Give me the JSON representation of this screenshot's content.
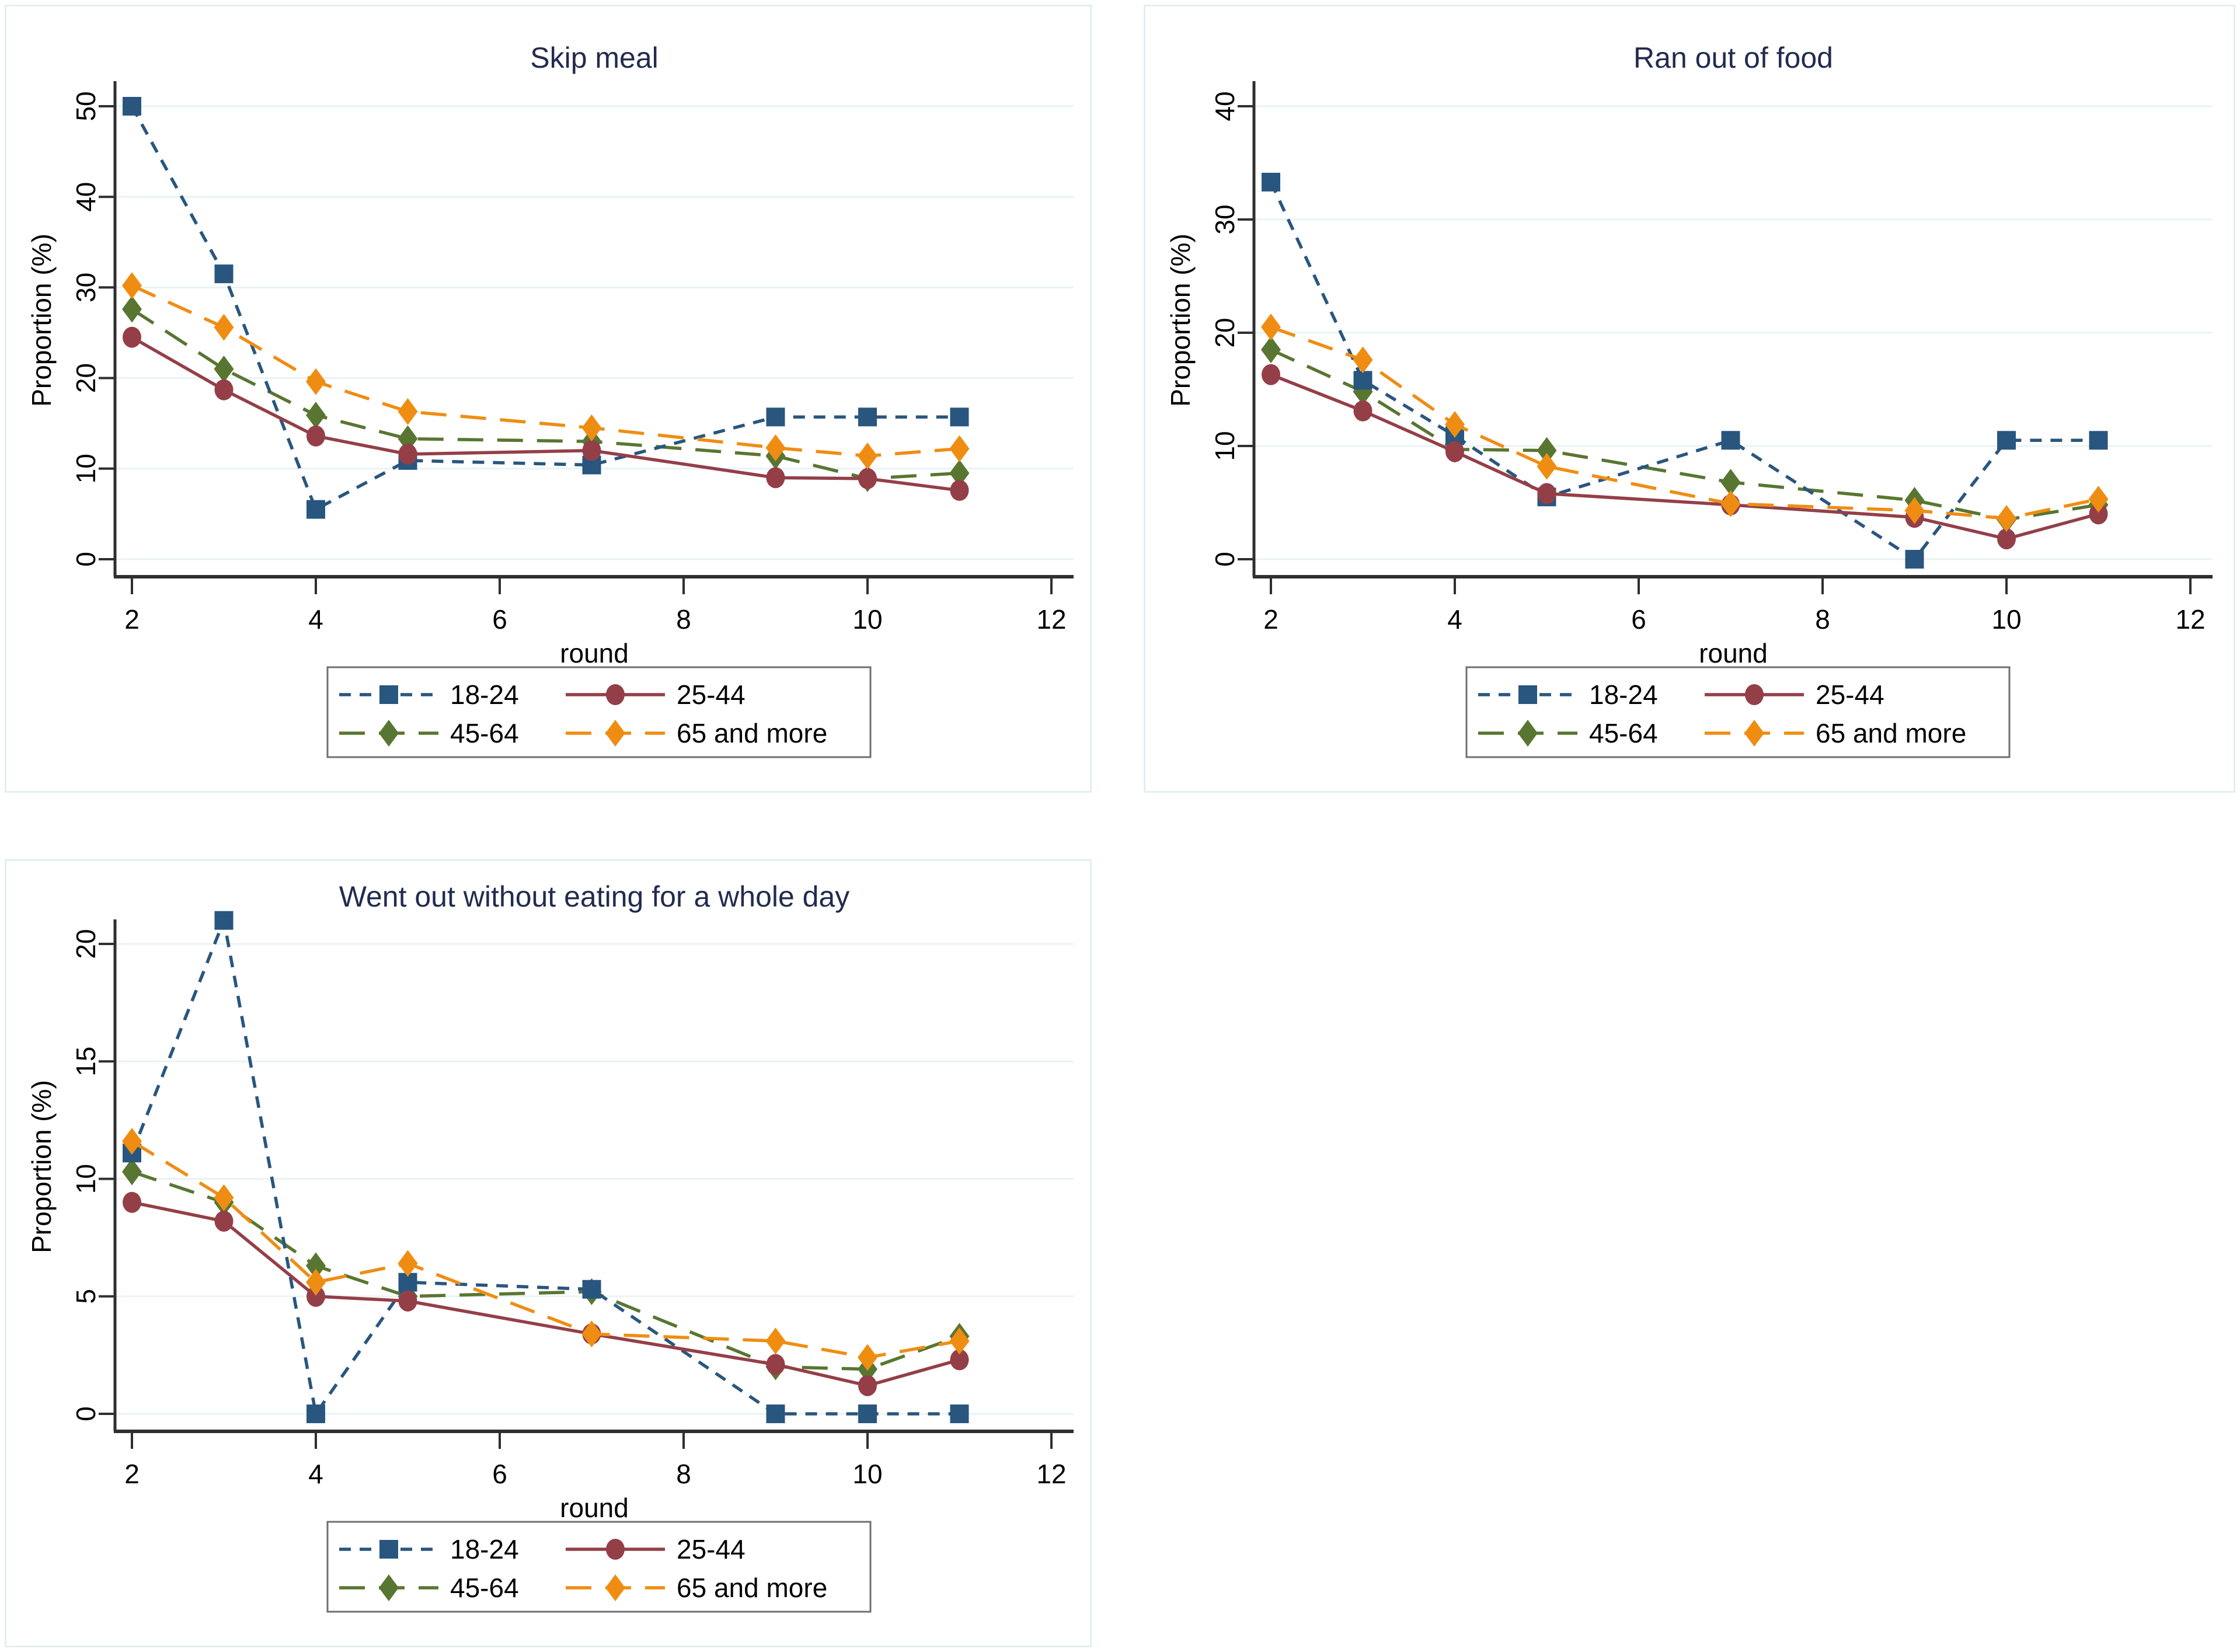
{
  "page": {
    "background": "#ffffff"
  },
  "style": {
    "title_color": "#222b4f",
    "axis_color": "#2f2f2f",
    "grid_color": "#e9f3f4",
    "tick_text_color": "#000000",
    "legend_border_color": "#6f6f6f",
    "panel_border_color": "#e3eef0",
    "series_colors": {
      "navy": "#29567e",
      "maroon": "#943f48",
      "green": "#587631",
      "orange": "#ef8d12"
    }
  },
  "chart_data": [
    {
      "id": "skip-meal",
      "type": "line",
      "title": "Skip meal",
      "xlabel": "round",
      "ylabel": "Proportion (%)",
      "x": [
        2,
        3,
        4,
        5,
        7,
        9,
        10,
        11
      ],
      "xticks": [
        2,
        4,
        6,
        8,
        10,
        12
      ],
      "yticks": [
        0,
        10,
        20,
        30,
        40,
        50
      ],
      "ylim": [
        0,
        52
      ],
      "grid": true,
      "legend_position": "bottom",
      "series": [
        {
          "name": "18-24",
          "color": "#29567e",
          "marker": "square",
          "dash": "short",
          "values": [
            50.0,
            31.5,
            5.5,
            10.9,
            10.4,
            15.7,
            15.7,
            15.7
          ]
        },
        {
          "name": "25-44",
          "color": "#943f48",
          "marker": "circle",
          "dash": "solid",
          "values": [
            24.5,
            18.7,
            13.6,
            11.6,
            12.0,
            9.0,
            8.9,
            7.6
          ]
        },
        {
          "name": "45-64",
          "color": "#587631",
          "marker": "diamond",
          "dash": "long",
          "values": [
            27.6,
            21.0,
            15.9,
            13.3,
            13.0,
            11.4,
            8.9,
            9.5
          ]
        },
        {
          "name": "65 and more",
          "color": "#ef8d12",
          "marker": "diamond",
          "dash": "long",
          "values": [
            30.2,
            25.6,
            19.6,
            16.3,
            14.5,
            12.3,
            11.4,
            12.2
          ]
        }
      ]
    },
    {
      "id": "ran-out-of-food",
      "type": "line",
      "title": "Ran out of food",
      "xlabel": "round",
      "ylabel": "Proportion (%)",
      "x": [
        2,
        3,
        4,
        5,
        7,
        9,
        10,
        11
      ],
      "xticks": [
        2,
        4,
        6,
        8,
        10,
        12
      ],
      "yticks": [
        0,
        10,
        20,
        30,
        40
      ],
      "ylim": [
        0,
        41.5
      ],
      "grid": true,
      "legend_position": "bottom",
      "series": [
        {
          "name": "18-24",
          "color": "#29567e",
          "marker": "square",
          "dash": "short",
          "values": [
            33.3,
            15.8,
            10.9,
            5.5,
            10.5,
            0.0,
            10.5,
            10.5
          ]
        },
        {
          "name": "25-44",
          "color": "#943f48",
          "marker": "circle",
          "dash": "solid",
          "values": [
            16.3,
            13.1,
            9.5,
            5.8,
            4.8,
            3.7,
            1.8,
            4.0
          ]
        },
        {
          "name": "45-64",
          "color": "#587631",
          "marker": "diamond",
          "dash": "long",
          "values": [
            18.5,
            14.8,
            9.7,
            9.6,
            6.8,
            5.2,
            3.5,
            4.8
          ]
        },
        {
          "name": "65 and more",
          "color": "#ef8d12",
          "marker": "diamond",
          "dash": "long",
          "values": [
            20.5,
            17.6,
            11.9,
            8.2,
            4.9,
            4.3,
            3.6,
            5.3
          ]
        }
      ]
    },
    {
      "id": "went-out-without-eating",
      "type": "line",
      "title": "Went out without eating for a whole day",
      "xlabel": "round",
      "ylabel": "Proportion (%)",
      "x": [
        2,
        3,
        4,
        5,
        7,
        9,
        10,
        11
      ],
      "xticks": [
        2,
        4,
        6,
        8,
        10,
        12
      ],
      "yticks": [
        0,
        5,
        10,
        15,
        20
      ],
      "ylim": [
        0,
        21.8
      ],
      "grid": true,
      "legend_position": "bottom",
      "series": [
        {
          "name": "18-24",
          "color": "#29567e",
          "marker": "square",
          "dash": "short",
          "values": [
            11.1,
            21.0,
            0.0,
            5.6,
            5.3,
            0.0,
            0.0,
            0.0
          ]
        },
        {
          "name": "25-44",
          "color": "#943f48",
          "marker": "circle",
          "dash": "solid",
          "values": [
            9.0,
            8.2,
            5.0,
            4.8,
            3.4,
            2.1,
            1.2,
            2.3
          ]
        },
        {
          "name": "45-64",
          "color": "#587631",
          "marker": "diamond",
          "dash": "long",
          "values": [
            10.3,
            9.0,
            6.3,
            5.0,
            5.2,
            2.0,
            1.9,
            3.3
          ]
        },
        {
          "name": "65 and more",
          "color": "#ef8d12",
          "marker": "diamond",
          "dash": "long",
          "values": [
            11.6,
            9.2,
            5.6,
            6.4,
            3.4,
            3.1,
            2.4,
            3.1
          ]
        }
      ]
    }
  ]
}
